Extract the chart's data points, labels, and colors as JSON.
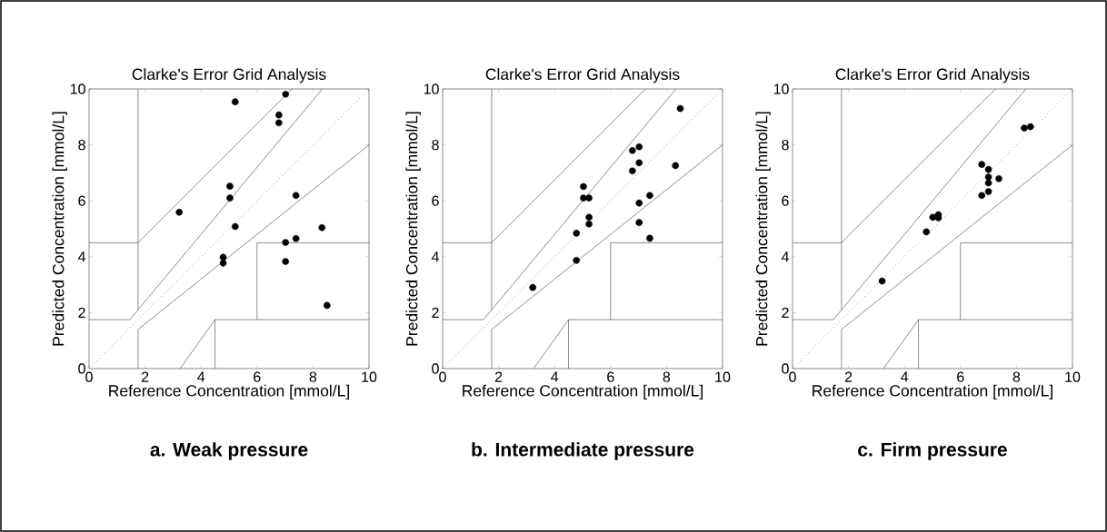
{
  "chart_data": [
    {
      "type": "scatter",
      "title": "Clarke's Error Grid Analysis",
      "xlabel": "Reference Concentration [mmol/L]",
      "ylabel": "Predicted Concentration [mmol/L]",
      "annotations": [
        "a. Weak pressure"
      ],
      "xlim": [
        0,
        10
      ],
      "ylim": [
        0,
        10
      ],
      "xticks": [
        0,
        2,
        4,
        6,
        8,
        10
      ],
      "yticks": [
        0,
        2,
        4,
        6,
        8,
        10
      ],
      "marker": "circle",
      "series": [
        {
          "color": "#000000",
          "x": [
            7.02,
            5.22,
            6.78,
            6.78,
            5.03,
            5.03,
            7.39,
            3.22,
            5.22,
            8.32,
            7.39,
            7.02,
            4.79,
            4.79,
            7.02,
            8.5
          ],
          "values": [
            9.81,
            9.54,
            9.07,
            8.79,
            6.52,
            6.1,
            6.19,
            5.59,
            5.08,
            5.04,
            4.65,
            4.51,
            3.98,
            3.77,
            3.83,
            2.26
          ]
        },
        {
          "type": "line",
          "color": "#404040",
          "line_style": "dotted",
          "marker": "none",
          "x": [
            0,
            10
          ],
          "values": [
            0,
            10
          ]
        },
        {
          "type": "line",
          "color": "#404040",
          "line_style": "solid",
          "marker": "none",
          "x": [
            0,
            1.4583,
            8.333
          ],
          "values": [
            1.75,
            1.75,
            10
          ]
        },
        {
          "type": "line",
          "color": "#404040",
          "line_style": "solid",
          "marker": "none",
          "x": [
            1.75,
            1.75
          ],
          "values": [
            10,
            2.1
          ]
        },
        {
          "type": "line",
          "color": "#404040",
          "line_style": "solid",
          "marker": "none",
          "x": [
            0,
            1.75,
            7.25
          ],
          "values": [
            4.5,
            4.5,
            10
          ]
        },
        {
          "type": "line",
          "color": "#404040",
          "line_style": "solid",
          "marker": "none",
          "x": [
            1.75,
            1.75,
            10
          ],
          "values": [
            0,
            1.4,
            8
          ]
        },
        {
          "type": "line",
          "color": "#404040",
          "line_style": "solid",
          "marker": "none",
          "x": [
            3.25,
            4.5,
            10
          ],
          "values": [
            0,
            1.75,
            1.75
          ]
        },
        {
          "type": "line",
          "color": "#404040",
          "line_style": "solid",
          "marker": "none",
          "x": [
            4.5,
            4.5
          ],
          "values": [
            0,
            1.75
          ]
        },
        {
          "type": "line",
          "color": "#404040",
          "line_style": "solid",
          "marker": "none",
          "x": [
            6,
            6,
            10
          ],
          "values": [
            1.75,
            4.5,
            4.5
          ]
        }
      ]
    },
    {
      "type": "scatter",
      "title": "Clarke's Error Grid Analysis",
      "xlabel": "Reference Concentration [mmol/L]",
      "ylabel": "Predicted Concentration [mmol/L]",
      "annotations": [
        "b. Intermediate pressure"
      ],
      "xlim": [
        0,
        10
      ],
      "ylim": [
        0,
        10
      ],
      "xticks": [
        0,
        2,
        4,
        6,
        8,
        10
      ],
      "yticks": [
        0,
        2,
        4,
        6,
        8,
        10
      ],
      "marker": "circle",
      "series": [
        {
          "color": "#000000",
          "x": [
            8.49,
            6.78,
            7.02,
            7.02,
            6.78,
            8.32,
            5.03,
            5.03,
            5.23,
            7.4,
            7.02,
            5.23,
            5.23,
            7.02,
            4.78,
            7.4,
            4.78,
            3.22
          ],
          "values": [
            9.3,
            7.8,
            7.93,
            7.36,
            7.07,
            7.26,
            6.51,
            6.1,
            6.1,
            6.19,
            5.92,
            5.41,
            5.17,
            5.22,
            4.84,
            4.66,
            3.87,
            2.9
          ]
        },
        {
          "type": "line",
          "color": "#404040",
          "line_style": "dotted",
          "marker": "none",
          "x": [
            0,
            10
          ],
          "values": [
            0,
            10
          ]
        },
        {
          "type": "line",
          "color": "#404040",
          "line_style": "solid",
          "marker": "none",
          "x": [
            0,
            1.4583,
            8.333
          ],
          "values": [
            1.75,
            1.75,
            10
          ]
        },
        {
          "type": "line",
          "color": "#404040",
          "line_style": "solid",
          "marker": "none",
          "x": [
            1.75,
            1.75
          ],
          "values": [
            10,
            2.1
          ]
        },
        {
          "type": "line",
          "color": "#404040",
          "line_style": "solid",
          "marker": "none",
          "x": [
            0,
            1.75,
            7.25
          ],
          "values": [
            4.5,
            4.5,
            10
          ]
        },
        {
          "type": "line",
          "color": "#404040",
          "line_style": "solid",
          "marker": "none",
          "x": [
            1.75,
            1.75,
            10
          ],
          "values": [
            0,
            1.4,
            8
          ]
        },
        {
          "type": "line",
          "color": "#404040",
          "line_style": "solid",
          "marker": "none",
          "x": [
            3.25,
            4.5,
            10
          ],
          "values": [
            0,
            1.75,
            1.75
          ]
        },
        {
          "type": "line",
          "color": "#404040",
          "line_style": "solid",
          "marker": "none",
          "x": [
            4.5,
            4.5
          ],
          "values": [
            0,
            1.75
          ]
        },
        {
          "type": "line",
          "color": "#404040",
          "line_style": "solid",
          "marker": "none",
          "x": [
            6,
            6,
            10
          ],
          "values": [
            1.75,
            4.5,
            4.5
          ]
        }
      ]
    },
    {
      "type": "scatter",
      "title": "Clarke's Error Grid Analysis",
      "xlabel": "Reference Concentration [mmol/L]",
      "ylabel": "Predicted Concentration [mmol/L]",
      "annotations": [
        "c. Firm pressure"
      ],
      "xlim": [
        0,
        10
      ],
      "ylim": [
        0,
        10
      ],
      "xticks": [
        0,
        2,
        4,
        6,
        8,
        10
      ],
      "yticks": [
        0,
        2,
        4,
        6,
        8,
        10
      ],
      "marker": "circle",
      "series": [
        {
          "color": "#000000",
          "x": [
            8.28,
            8.5,
            6.76,
            7.0,
            7.0,
            7.0,
            7.37,
            7.0,
            6.76,
            5.01,
            5.21,
            5.21,
            4.78,
            3.2
          ],
          "values": [
            8.6,
            8.65,
            7.3,
            7.12,
            6.85,
            6.64,
            6.79,
            6.33,
            6.19,
            5.41,
            5.5,
            5.39,
            4.89,
            3.13
          ]
        },
        {
          "type": "line",
          "color": "#404040",
          "line_style": "dotted",
          "marker": "none",
          "x": [
            0,
            10
          ],
          "values": [
            0,
            10
          ]
        },
        {
          "type": "line",
          "color": "#404040",
          "line_style": "solid",
          "marker": "none",
          "x": [
            0,
            1.4583,
            8.333
          ],
          "values": [
            1.75,
            1.75,
            10
          ]
        },
        {
          "type": "line",
          "color": "#404040",
          "line_style": "solid",
          "marker": "none",
          "x": [
            1.75,
            1.75
          ],
          "values": [
            10,
            2.1
          ]
        },
        {
          "type": "line",
          "color": "#404040",
          "line_style": "solid",
          "marker": "none",
          "x": [
            0,
            1.75,
            7.25
          ],
          "values": [
            4.5,
            4.5,
            10
          ]
        },
        {
          "type": "line",
          "color": "#404040",
          "line_style": "solid",
          "marker": "none",
          "x": [
            1.75,
            1.75,
            10
          ],
          "values": [
            0,
            1.4,
            8
          ]
        },
        {
          "type": "line",
          "color": "#404040",
          "line_style": "solid",
          "marker": "none",
          "x": [
            3.25,
            4.5,
            10
          ],
          "values": [
            0,
            1.75,
            1.75
          ]
        },
        {
          "type": "line",
          "color": "#404040",
          "line_style": "solid",
          "marker": "none",
          "x": [
            4.5,
            4.5
          ],
          "values": [
            0,
            1.75
          ]
        },
        {
          "type": "line",
          "color": "#404040",
          "line_style": "solid",
          "marker": "none",
          "x": [
            6,
            6,
            10
          ],
          "values": [
            1.75,
            4.5,
            4.5
          ]
        }
      ]
    }
  ]
}
